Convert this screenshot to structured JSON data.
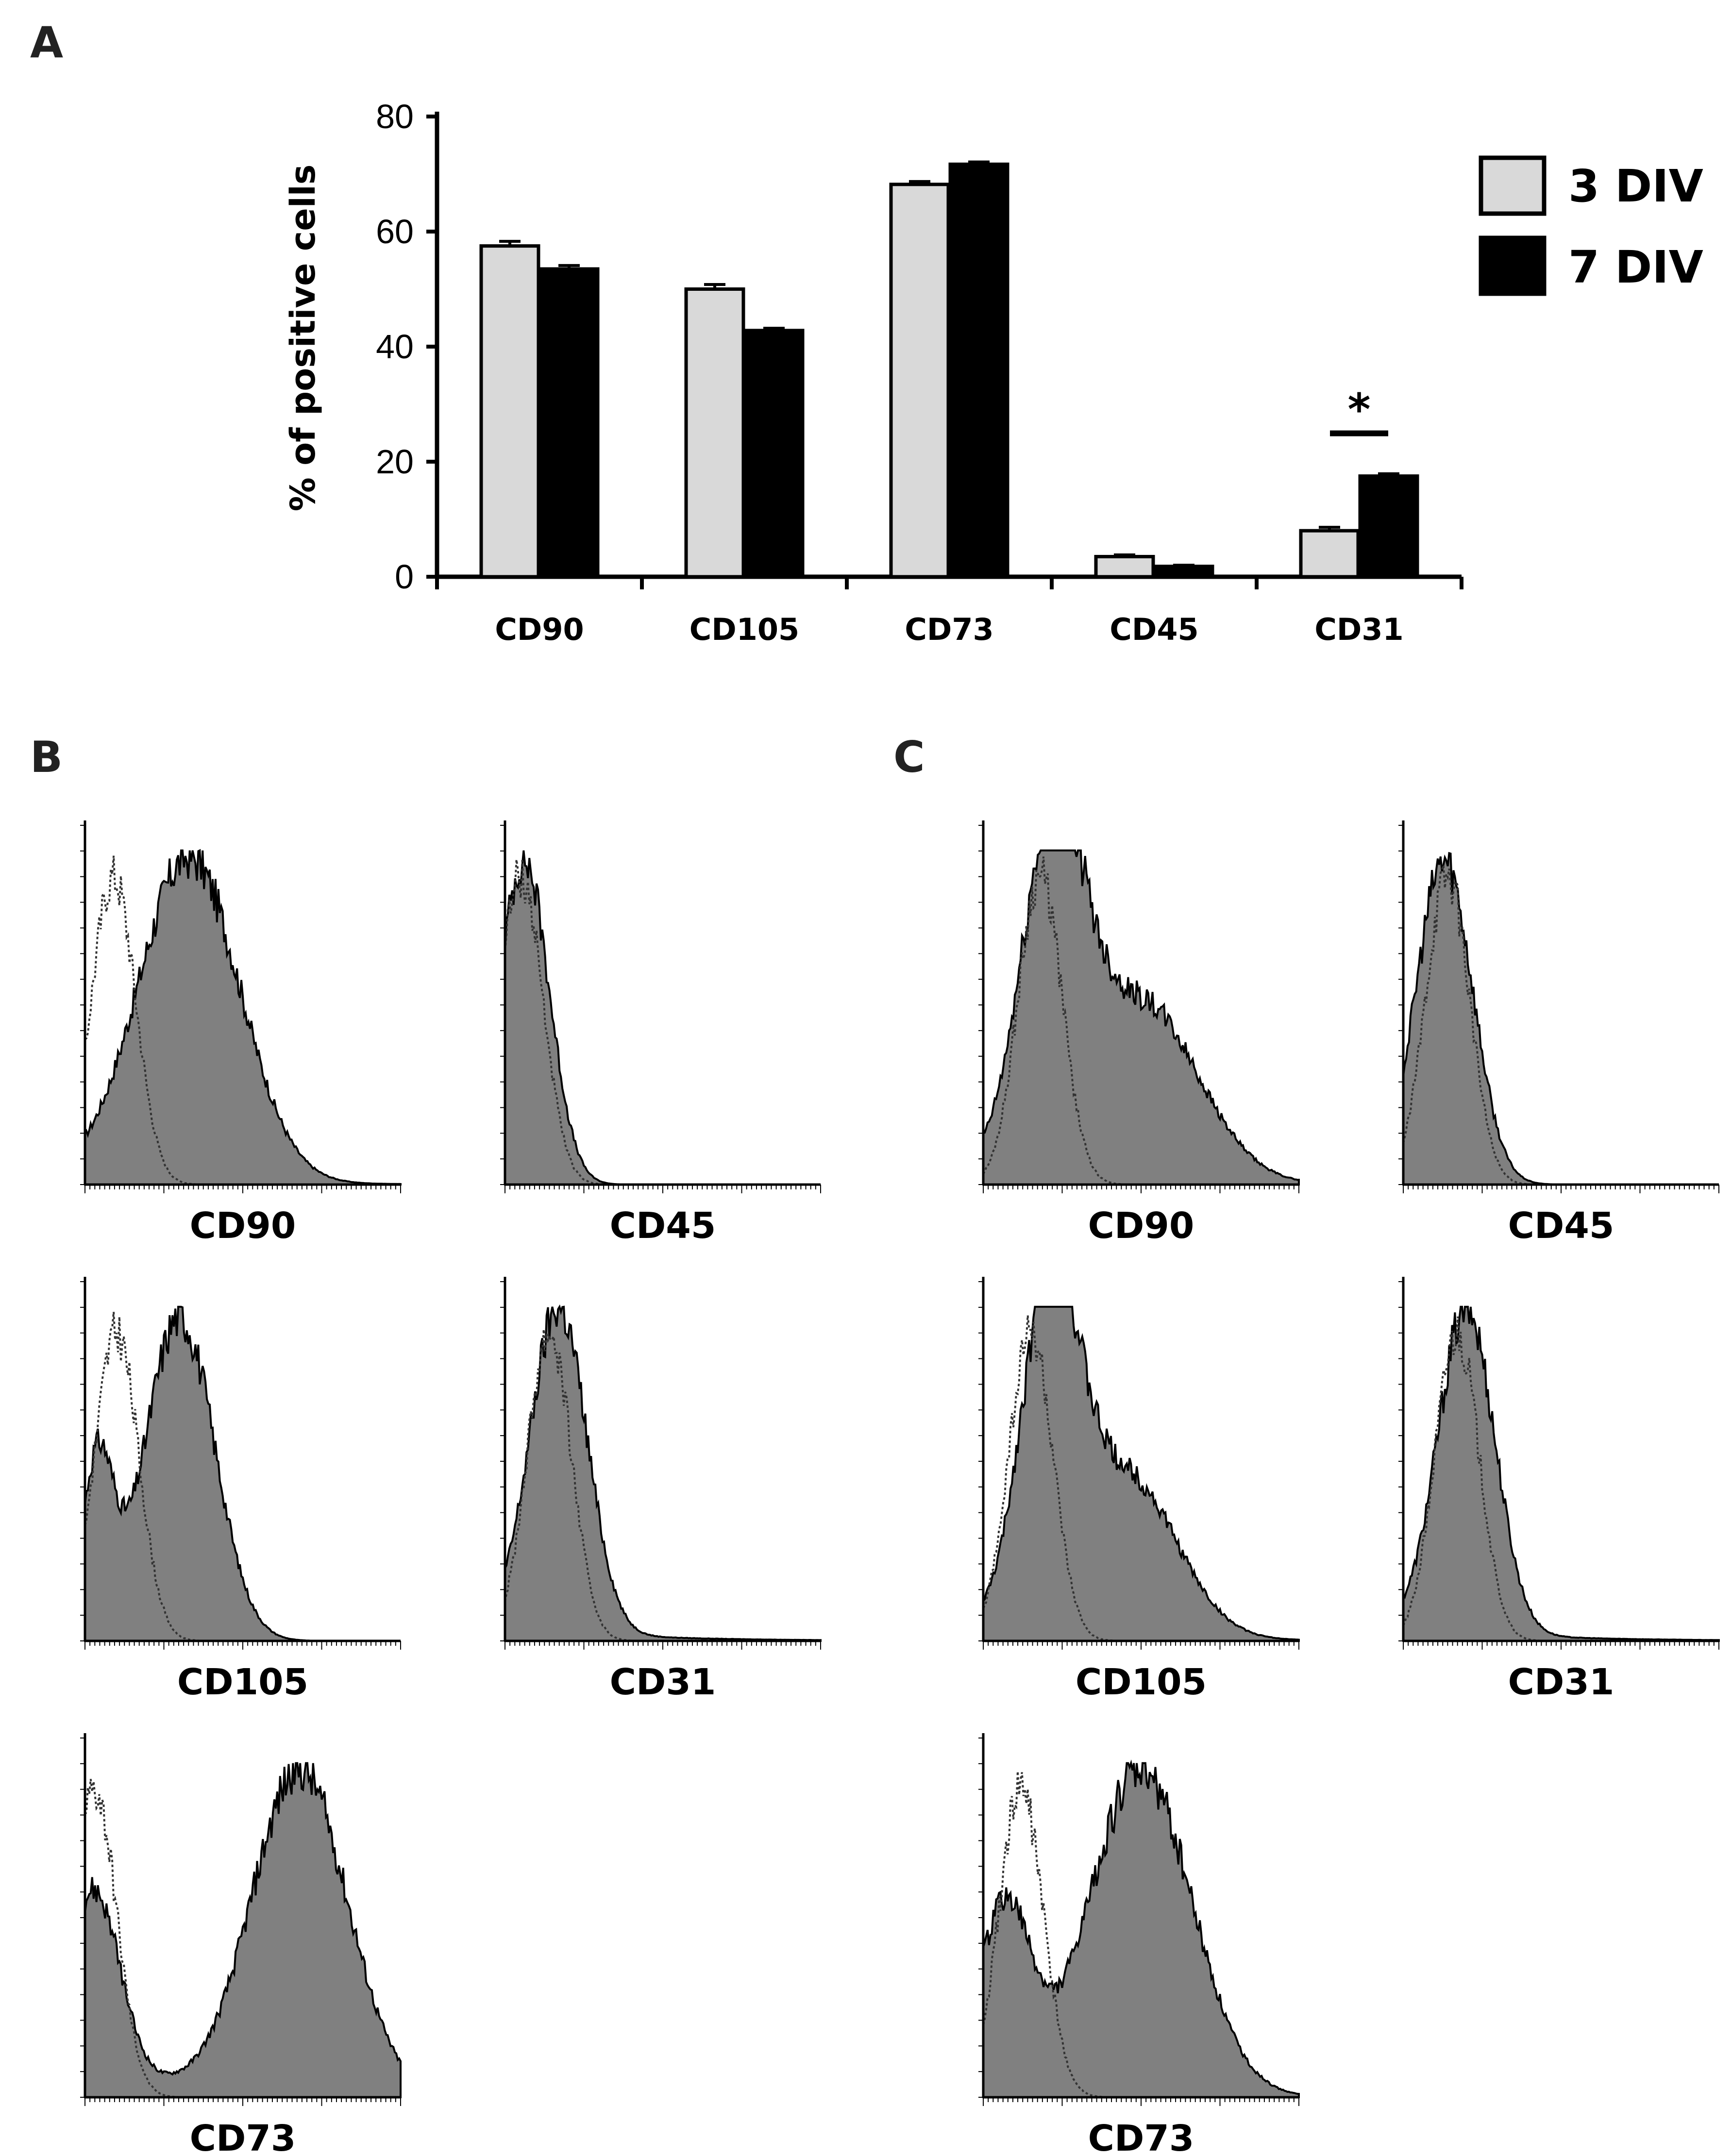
{
  "panels": {
    "a": "A",
    "b": "B",
    "c": "C"
  },
  "colors": {
    "series_3div": "#d9d9d9",
    "series_7div": "#000000",
    "histogram_fill": "#808080"
  },
  "chart_data": [
    {
      "type": "bar",
      "panel": "A",
      "ylabel": "% of positive cells",
      "xlabel": "",
      "ylim": [
        0,
        80
      ],
      "yticks": [
        0,
        20,
        40,
        60,
        80
      ],
      "categories": [
        "CD90",
        "CD105",
        "CD73",
        "CD45",
        "CD31"
      ],
      "series": [
        {
          "name": "3 DIV",
          "values": [
            57.5,
            50,
            68.2,
            3.5,
            8
          ],
          "errors": [
            0.8,
            0.8,
            0.5,
            0.3,
            0.6
          ]
        },
        {
          "name": "7 DIV",
          "values": [
            53.5,
            42.8,
            71.7,
            1.8,
            17.5
          ],
          "errors": [
            0.6,
            0.4,
            0.4,
            0.2,
            0.4
          ]
        }
      ],
      "legend": "top-right",
      "annotations": [
        {
          "text": "*",
          "category": "CD31"
        }
      ]
    },
    {
      "type": "area",
      "panel": "B",
      "description_kind": "flow cytometry histograms",
      "histograms": [
        {
          "label": "CD90",
          "isotype_peak": 0.09,
          "stain_peaks": [
            [
              0.33,
              1.0,
              0.16
            ]
          ],
          "stain_base": 0.03
        },
        {
          "label": "CD45",
          "isotype_peak": 0.05,
          "stain_peaks": [
            [
              0.06,
              1.0,
              0.08
            ]
          ],
          "stain_base": 0.0
        },
        {
          "label": "CD105",
          "isotype_peak": 0.1,
          "stain_peaks": [
            [
              0.04,
              0.55,
              0.05
            ],
            [
              0.3,
              1.0,
              0.11
            ]
          ],
          "stain_base": 0.0
        },
        {
          "label": "CD31",
          "isotype_peak": 0.14,
          "stain_peaks": [
            [
              0.17,
              1.0,
              0.09
            ]
          ],
          "stain_base": 0.05
        },
        {
          "label": "CD73",
          "isotype_peak": 0.03,
          "stain_peaks": [
            [
              0.03,
              0.55,
              0.08
            ],
            [
              0.68,
              1.0,
              0.15
            ]
          ],
          "stain_base": 0.1
        }
      ]
    },
    {
      "type": "area",
      "panel": "C",
      "description_kind": "flow cytometry histograms",
      "histograms": [
        {
          "label": "CD90",
          "isotype_peak": 0.18,
          "stain_peaks": [
            [
              0.22,
              1.0,
              0.1
            ],
            [
              0.5,
              0.55,
              0.18
            ]
          ],
          "stain_base": 0.05
        },
        {
          "label": "CD45",
          "isotype_peak": 0.14,
          "stain_peaks": [
            [
              0.13,
              1.0,
              0.09
            ]
          ],
          "stain_base": 0.0
        },
        {
          "label": "CD105",
          "isotype_peak": 0.15,
          "stain_peaks": [
            [
              0.21,
              1.0,
              0.09
            ],
            [
              0.45,
              0.5,
              0.16
            ]
          ],
          "stain_base": 0.05
        },
        {
          "label": "CD31",
          "isotype_peak": 0.17,
          "stain_peaks": [
            [
              0.2,
              1.0,
              0.09
            ]
          ],
          "stain_base": 0.05
        },
        {
          "label": "CD73",
          "isotype_peak": 0.12,
          "stain_peaks": [
            [
              0.07,
              0.55,
              0.08
            ],
            [
              0.5,
              1.0,
              0.16
            ]
          ],
          "stain_base": 0.05
        }
      ]
    }
  ]
}
